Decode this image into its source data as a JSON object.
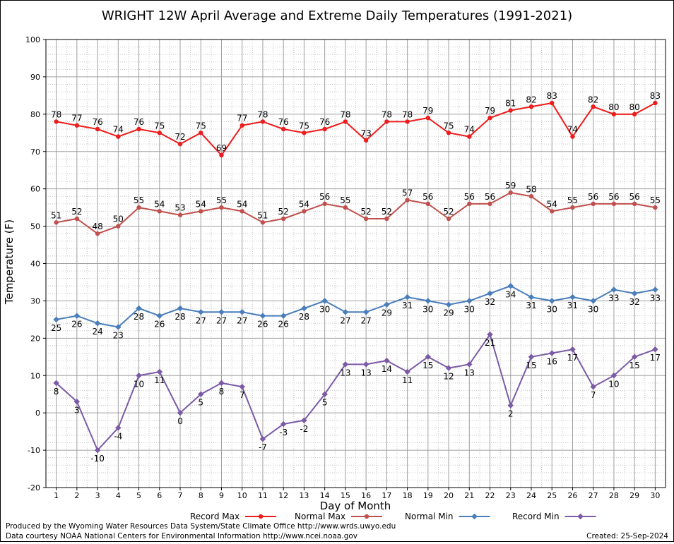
{
  "chart_data": {
    "type": "line",
    "title": "WRIGHT 12W April Average and Extreme Daily Temperatures (1991-2021)",
    "xlabel": "Day of Month",
    "ylabel": "Temperature (F)",
    "ylim": [
      -20,
      100
    ],
    "xlim": [
      0.5,
      30.5
    ],
    "yticks": [
      -20,
      -10,
      0,
      10,
      20,
      30,
      40,
      50,
      60,
      70,
      80,
      90,
      100
    ],
    "x": [
      1,
      2,
      3,
      4,
      5,
      6,
      7,
      8,
      9,
      10,
      11,
      12,
      13,
      14,
      15,
      16,
      17,
      18,
      19,
      20,
      21,
      22,
      23,
      24,
      25,
      26,
      27,
      28,
      29,
      30
    ],
    "grid": true,
    "legend_position": "bottom",
    "series": [
      {
        "name": "Record Max",
        "color": "#ee1c1c",
        "marker": "circle",
        "label_position": "above",
        "values": [
          78,
          77,
          76,
          74,
          76,
          75,
          72,
          75,
          69,
          77,
          78,
          76,
          75,
          76,
          78,
          73,
          78,
          78,
          79,
          75,
          74,
          79,
          81,
          82,
          83,
          74,
          82,
          80,
          80,
          83
        ]
      },
      {
        "name": "Normal Max",
        "color": "#c0504d",
        "marker": "circle",
        "label_position": "above",
        "values": [
          51,
          52,
          48,
          50,
          55,
          54,
          53,
          54,
          55,
          54,
          51,
          52,
          54,
          56,
          55,
          52,
          52,
          57,
          56,
          52,
          56,
          56,
          59,
          58,
          54,
          55,
          56,
          56,
          56,
          55
        ]
      },
      {
        "name": "Normal Min",
        "color": "#4a7ebb",
        "marker": "diamond",
        "label_position": "below",
        "values": [
          25,
          26,
          24,
          23,
          28,
          26,
          28,
          27,
          27,
          27,
          26,
          26,
          28,
          30,
          27,
          27,
          29,
          31,
          30,
          29,
          30,
          32,
          34,
          31,
          30,
          31,
          30,
          33,
          32,
          33
        ]
      },
      {
        "name": "Record Min",
        "color": "#7b5ba6",
        "marker": "diamond",
        "label_position": "below",
        "values": [
          8,
          3,
          -10,
          -4,
          10,
          11,
          0,
          5,
          8,
          7,
          -7,
          -3,
          -2,
          5,
          13,
          13,
          14,
          11,
          15,
          12,
          13,
          21,
          2,
          15,
          16,
          17,
          7,
          10,
          15,
          17
        ]
      }
    ]
  },
  "footer": {
    "produced_by": "Produced by the Wyoming Water Resources Data System/State Climate Office http://www.wrds.uwyo.edu",
    "data_courtesy": "Data courtesy NOAA National Centers for Environmental Information http://www.ncei.noaa.gov",
    "created": "Created:  25-Sep-2024"
  }
}
